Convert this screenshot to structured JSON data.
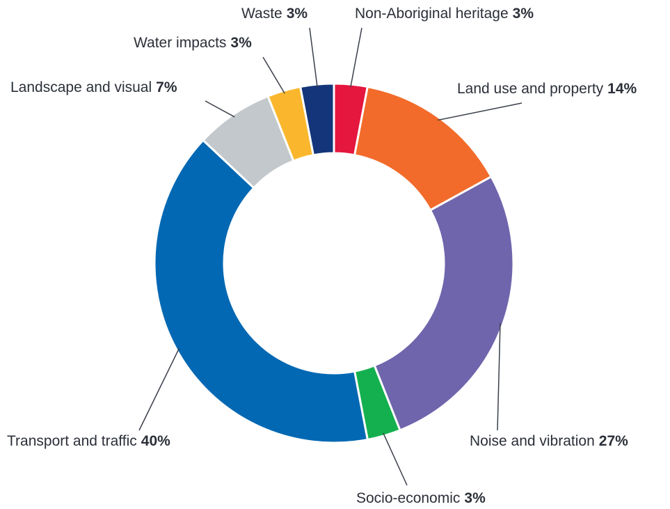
{
  "chart_data": {
    "type": "donut",
    "categories": [
      "Non-Aboriginal heritage",
      "Land use and property",
      "Noise and vibration",
      "Socio-economic",
      "Transport and traffic",
      "Landscape and visual",
      "Water impacts",
      "Waste"
    ],
    "values": [
      3,
      14,
      27,
      3,
      40,
      7,
      3,
      3
    ],
    "value_labels": [
      "3%",
      "14%",
      "27%",
      "3%",
      "40%",
      "7%",
      "3%",
      "3%"
    ],
    "colors": [
      "#e5173f",
      "#f26b2a",
      "#6f65ac",
      "#14b04f",
      "#0368b3",
      "#c3c8cc",
      "#fab72d",
      "#14357a"
    ]
  }
}
